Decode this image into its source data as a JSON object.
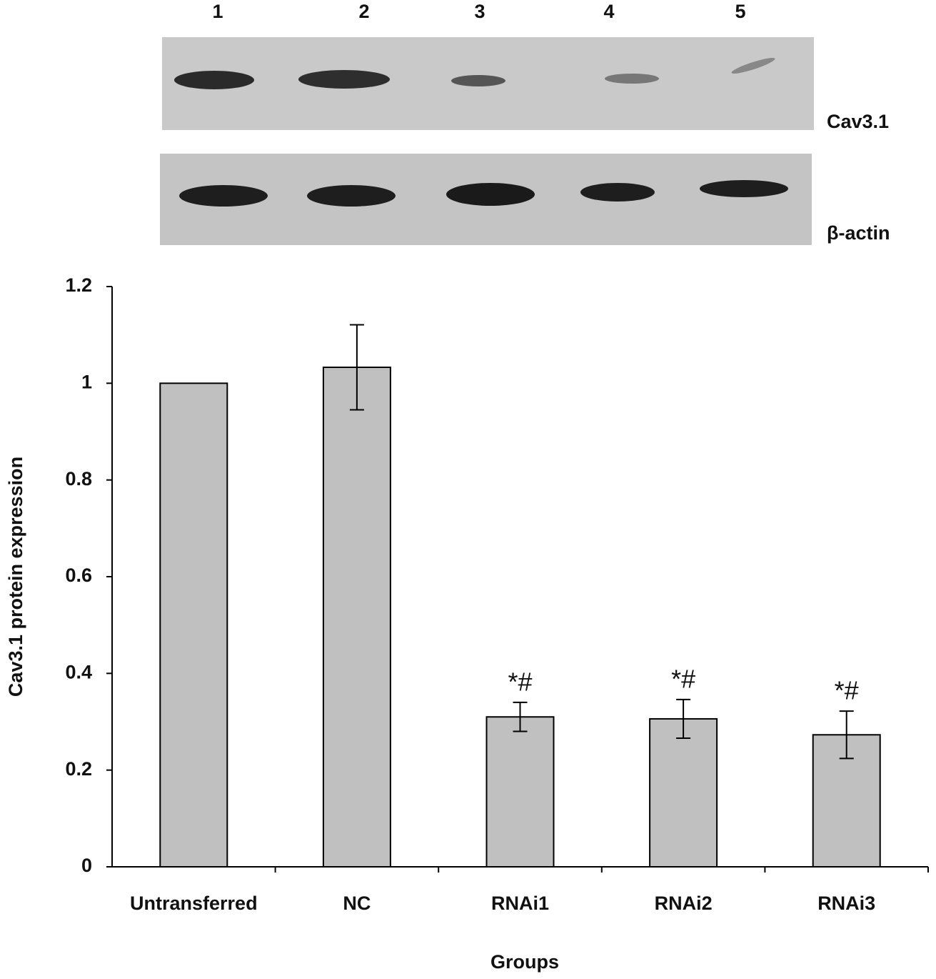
{
  "blot": {
    "lanes": [
      "1",
      "2",
      "3",
      "4",
      "5"
    ],
    "bands": [
      "Cav3.1",
      "β-actin"
    ]
  },
  "chart_data": {
    "type": "bar",
    "y_label": "Cav3.1 protein expression",
    "x_label": "Groups",
    "categories": [
      "Untransferred",
      "NC",
      "RNAi1",
      "RNAi2",
      "RNAi3"
    ],
    "values": [
      1.0,
      1.033,
      0.31,
      0.306,
      0.273
    ],
    "errors": [
      null,
      0.088,
      0.03,
      0.04,
      0.049
    ],
    "color": "#c0c0c0",
    "annotations": [
      {
        "category": "RNAi1",
        "text": "*#"
      },
      {
        "category": "RNAi2",
        "text": "*#"
      },
      {
        "category": "RNAi3",
        "text": "*#"
      }
    ],
    "ylim": [
      0,
      1.2
    ],
    "yticks": [
      0,
      0.2,
      0.4,
      0.6,
      0.8,
      1,
      1.2
    ],
    "grid": false
  }
}
